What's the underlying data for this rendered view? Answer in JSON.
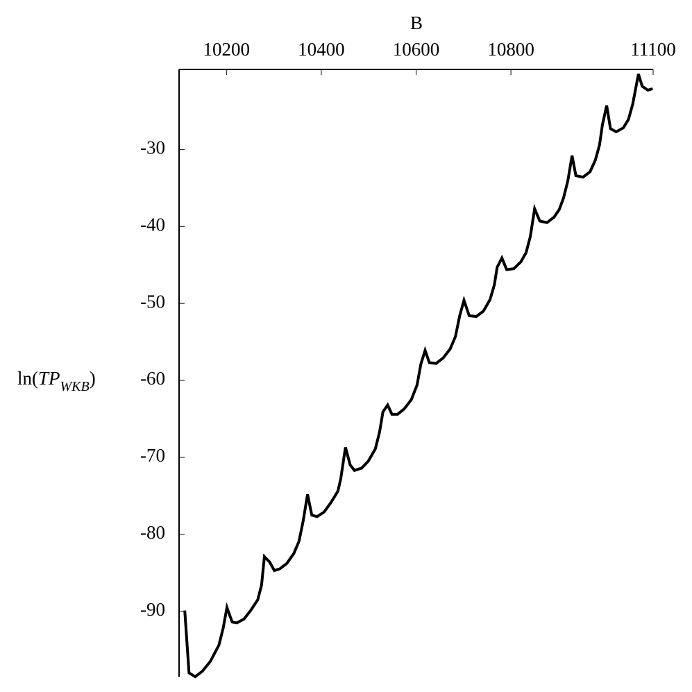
{
  "chart_data": {
    "type": "line",
    "x_label": "B",
    "y_label": [
      "ln(",
      "TP",
      "WKB",
      ")"
    ],
    "x": [
      10112,
      10121,
      10134,
      10149,
      10166,
      10184,
      10193,
      10201,
      10212,
      10222,
      10237,
      10251,
      10266,
      10274,
      10280,
      10291,
      10301,
      10312,
      10327,
      10342,
      10353,
      10362,
      10371,
      10380,
      10391,
      10406,
      10420,
      10435,
      10441,
      10451,
      10461,
      10470,
      10485,
      10499,
      10514,
      10523,
      10530,
      10540,
      10549,
      10561,
      10575,
      10590,
      10602,
      10610,
      10619,
      10628,
      10642,
      10657,
      10672,
      10683,
      10692,
      10701,
      10712,
      10727,
      10742,
      10756,
      10765,
      10771,
      10781,
      10791,
      10806,
      10821,
      10832,
      10841,
      10850,
      10861,
      10876,
      10891,
      10902,
      10911,
      10920,
      10929,
      10937,
      10952,
      10967,
      10978,
      10987,
      10993,
      11002,
      11010,
      11022,
      11037,
      11048,
      11057,
      11069,
      11077,
      11089,
      11099
    ],
    "values": [
      -89.9,
      -98.0,
      -98.5,
      -97.8,
      -96.5,
      -94.4,
      -92.2,
      -89.5,
      -91.4,
      -91.5,
      -91.0,
      -89.9,
      -88.5,
      -86.6,
      -82.9,
      -83.6,
      -84.7,
      -84.5,
      -83.8,
      -82.5,
      -80.9,
      -78.2,
      -74.8,
      -77.5,
      -77.7,
      -77.1,
      -75.9,
      -74.4,
      -72.8,
      -68.7,
      -71.0,
      -71.7,
      -71.4,
      -70.5,
      -68.9,
      -66.7,
      -64.1,
      -63.2,
      -64.4,
      -64.4,
      -63.7,
      -62.5,
      -60.6,
      -57.9,
      -56.1,
      -57.7,
      -57.8,
      -57.1,
      -55.9,
      -54.3,
      -51.6,
      -49.6,
      -51.6,
      -51.7,
      -51.0,
      -49.5,
      -47.6,
      -45.3,
      -44.1,
      -45.6,
      -45.5,
      -44.6,
      -43.4,
      -41.3,
      -37.7,
      -39.3,
      -39.5,
      -38.8,
      -37.8,
      -36.3,
      -34.1,
      -30.8,
      -33.4,
      -33.6,
      -32.9,
      -31.4,
      -29.4,
      -26.8,
      -24.3,
      -27.3,
      -27.7,
      -27.2,
      -26.1,
      -24.1,
      -20.2,
      -21.8,
      -22.3,
      -22.1
    ],
    "color": "#000000",
    "xlim": [
      10100,
      11100
    ],
    "xticks": [
      10200,
      10400,
      10600,
      10800,
      11100
    ],
    "ylim": [
      -98.5,
      -19.6
    ],
    "yticks": [
      -30,
      -40,
      -50,
      -60,
      -70,
      -80,
      -90
    ]
  }
}
